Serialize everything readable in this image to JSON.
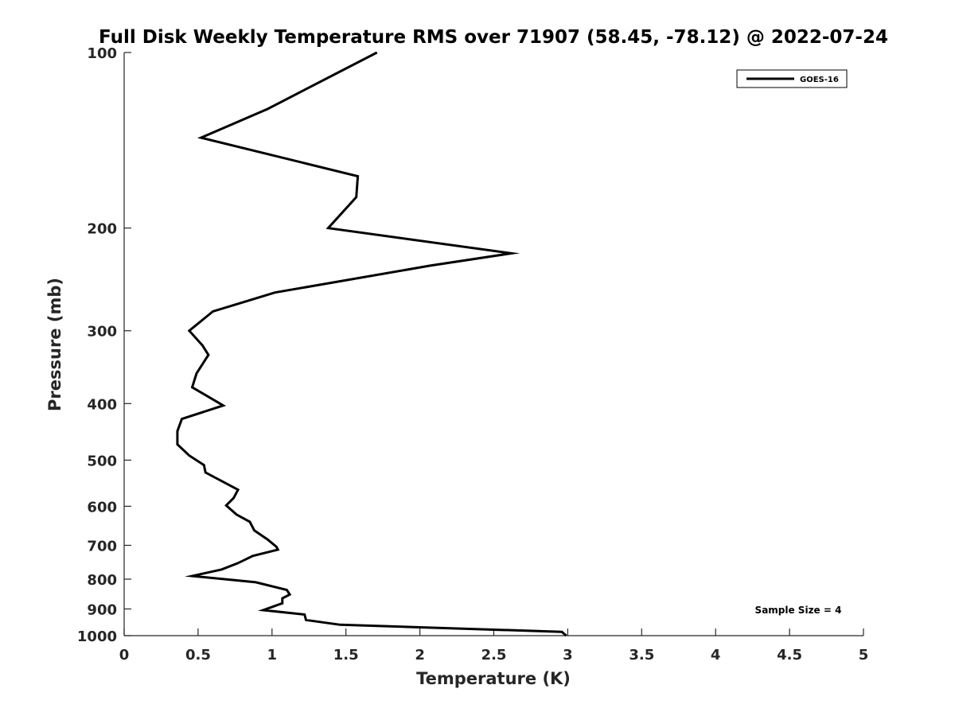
{
  "chart_data": {
    "type": "line",
    "title": "Full Disk Weekly Temperature RMS over 71907 (58.45, -78.12) @ 2022-07-24",
    "xlabel": "Temperature (K)",
    "ylabel": "Pressure (mb)",
    "xlim": [
      0,
      5
    ],
    "ylim": [
      100,
      1000
    ],
    "y_scale": "log",
    "y_reversed": true,
    "x_ticks": [
      0,
      0.5,
      1,
      1.5,
      2,
      2.5,
      3,
      3.5,
      4,
      4.5,
      5
    ],
    "x_tick_labels": [
      "0",
      "0.5",
      "1",
      "1.5",
      "2",
      "2.5",
      "3",
      "3.5",
      "4",
      "4.5",
      "5"
    ],
    "y_ticks": [
      100,
      200,
      300,
      400,
      500,
      600,
      700,
      800,
      900,
      1000
    ],
    "y_tick_labels": [
      "100",
      "200",
      "300",
      "400",
      "500",
      "600",
      "700",
      "800",
      "900",
      "1000"
    ],
    "grid": false,
    "legend_position": "top-right",
    "annotation": "Sample Size = 4",
    "series": [
      {
        "name": "GOES-16",
        "color": "#000000",
        "x": [
          1.71,
          0.97,
          0.52,
          1.58,
          1.57,
          1.38,
          2.62,
          2.07,
          1.02,
          0.6,
          0.44,
          0.53,
          0.57,
          0.49,
          0.46,
          0.67,
          0.39,
          0.36,
          0.36,
          0.44,
          0.54,
          0.55,
          0.77,
          0.74,
          0.69,
          0.76,
          0.85,
          0.88,
          0.97,
          1.03,
          1.04,
          0.87,
          0.77,
          0.66,
          0.46,
          0.89,
          1.1,
          1.12,
          1.07,
          1.07,
          0.94,
          1.22,
          1.23,
          1.46,
          2.96,
          2.99
        ],
        "y": [
          100,
          125,
          140,
          163,
          177,
          200,
          221,
          232,
          258,
          278,
          300,
          318,
          330,
          355,
          375,
          403,
          425,
          446,
          470,
          491,
          510,
          525,
          562,
          581,
          598,
          620,
          638,
          660,
          684,
          704,
          712,
          730,
          751,
          770,
          790,
          810,
          835,
          850,
          863,
          880,
          904,
          920,
          940,
          958,
          985,
          1000
        ]
      }
    ]
  }
}
